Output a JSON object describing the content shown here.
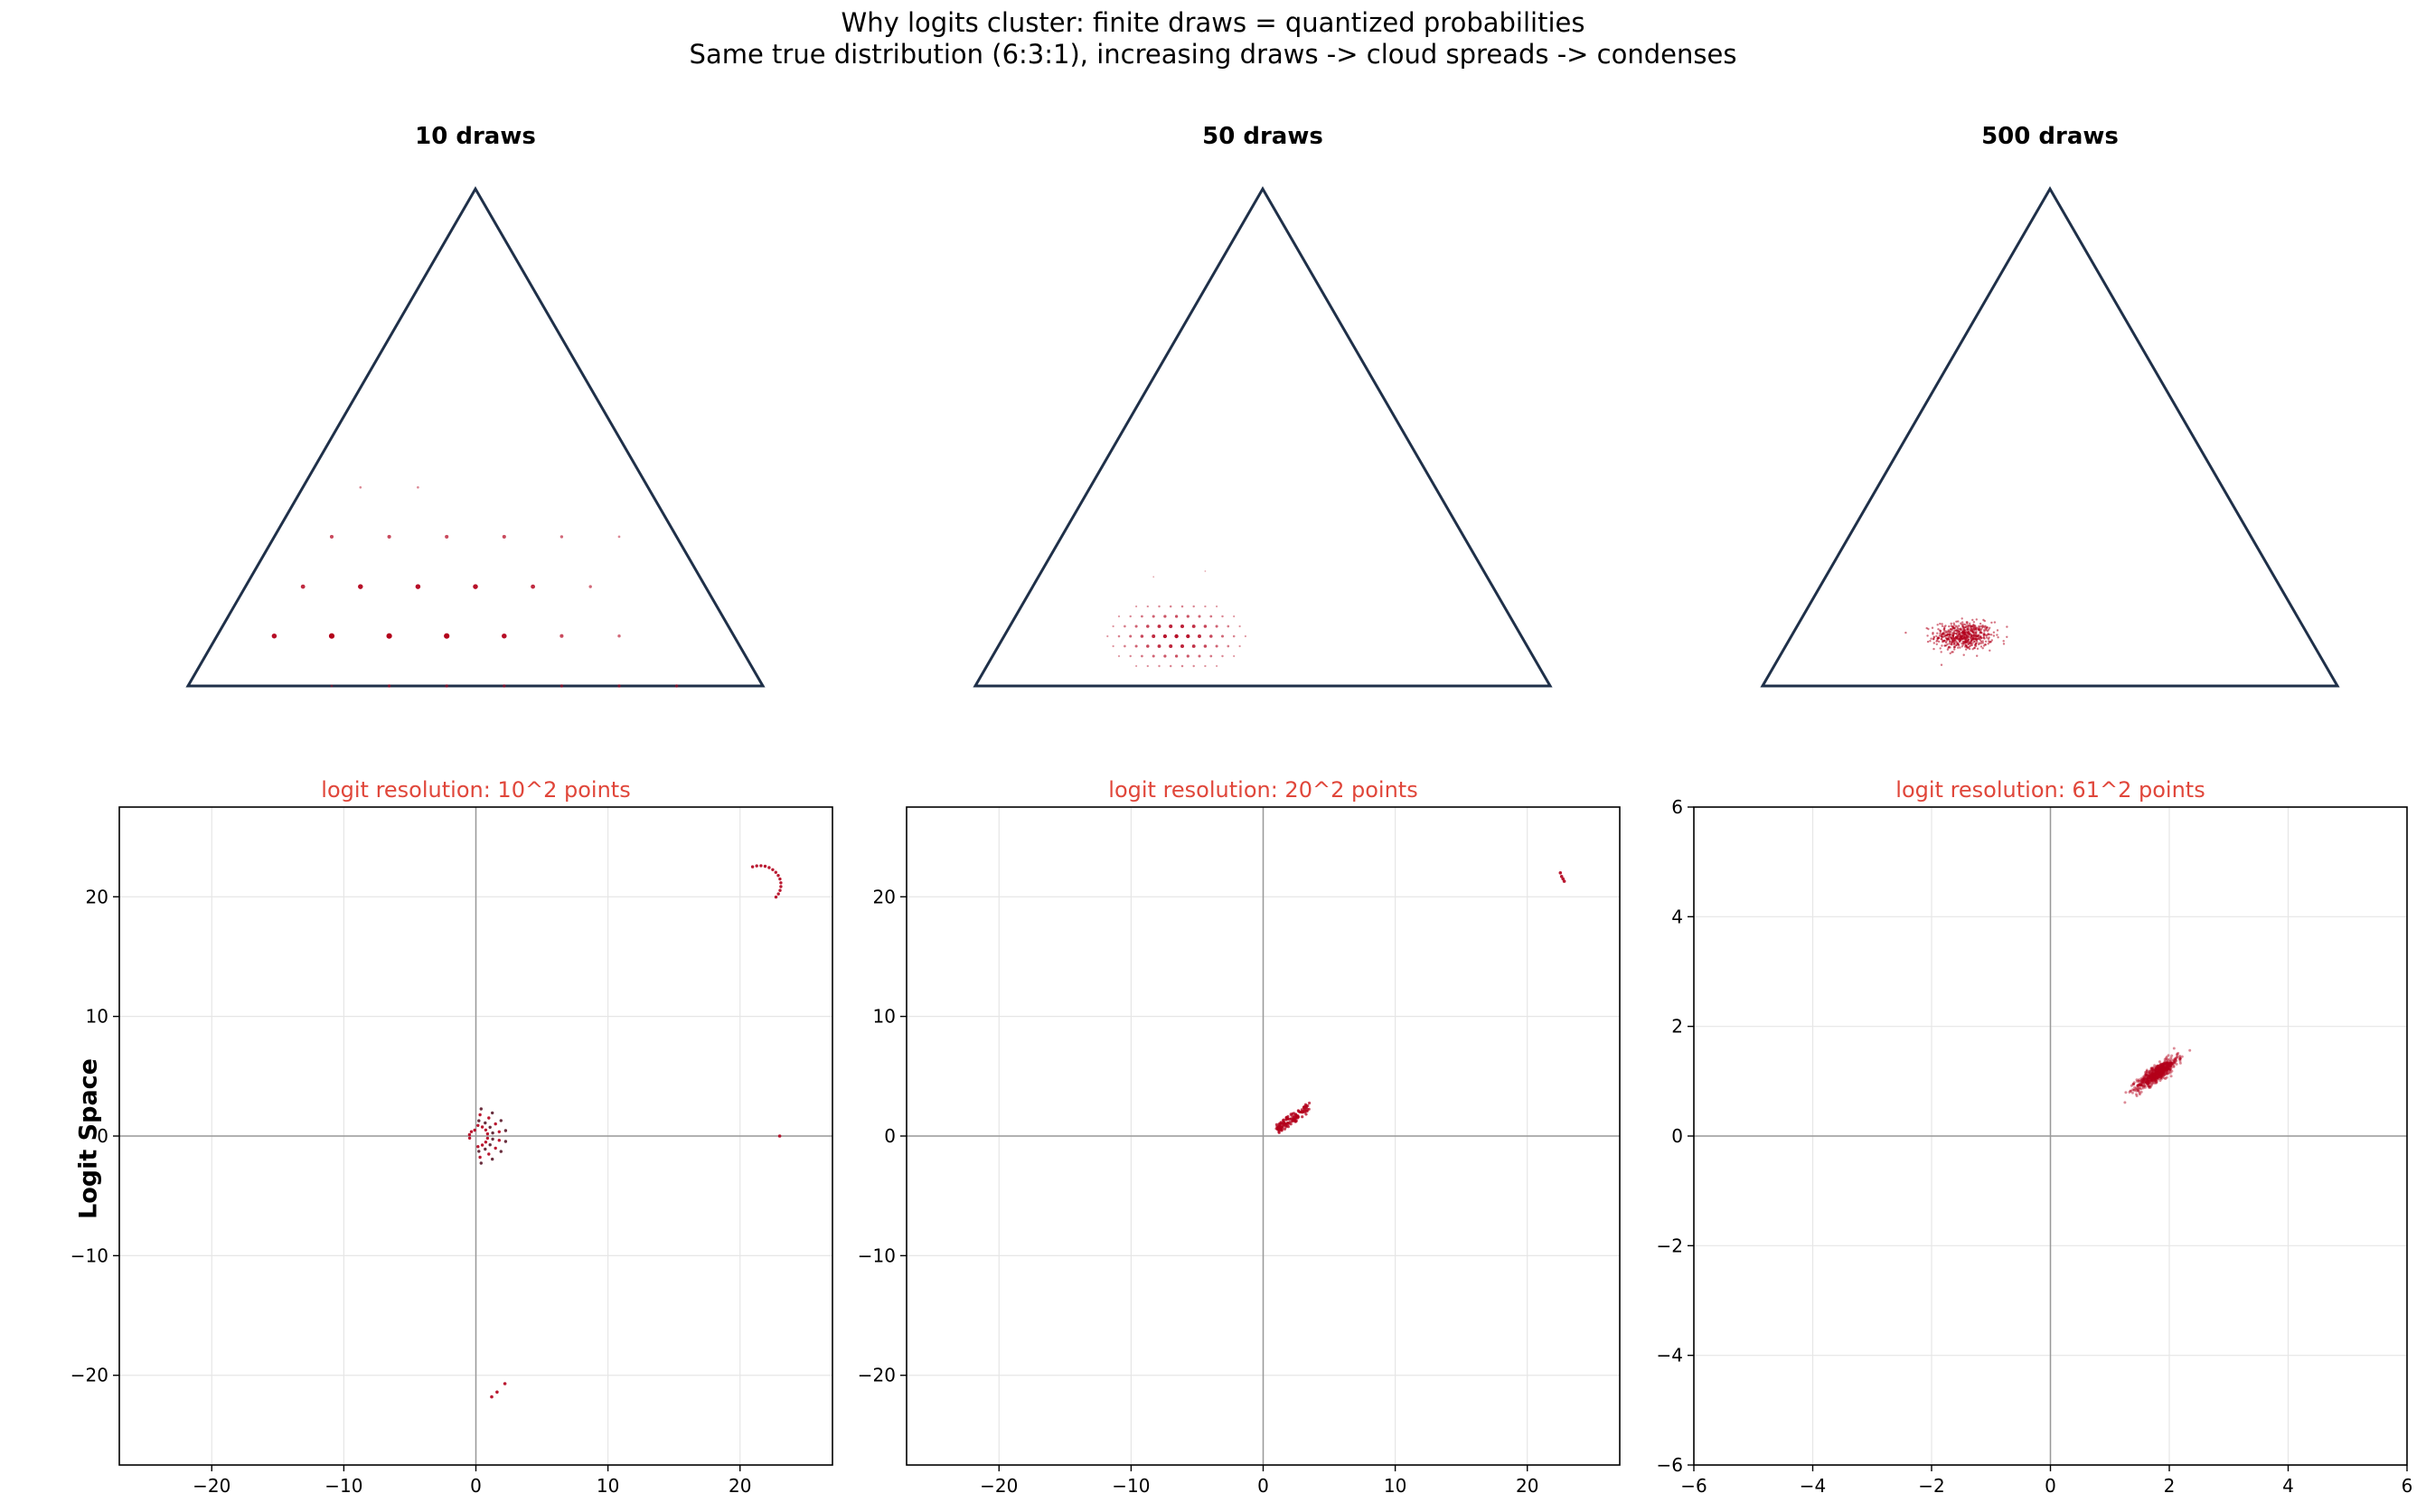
{
  "suptitle": {
    "line1": "Why logits cluster: finite draws = quantized probabilities",
    "line2": "Same true distribution (6:3:1), increasing draws -> cloud spreads -> condenses"
  },
  "row_label": "Logit Space",
  "colors": {
    "triangle": "#1f3049",
    "points": "#b3001b",
    "points_alt": "#5a1a2a",
    "subtitle": "#e0463a",
    "grid": "#e6e6e6",
    "axis_zero": "#999999"
  },
  "chart_data": [
    {
      "type": "scatter",
      "panel": "simplex",
      "title": "10 draws",
      "draws": 10,
      "true_distribution": [
        6,
        3,
        1
      ],
      "points": [
        {
          "x": 0.85,
          "y": 0.0,
          "n": 2
        },
        {
          "x": 0.75,
          "y": 0.0,
          "n": 2
        },
        {
          "x": 0.65,
          "y": 0.0,
          "n": 2
        },
        {
          "x": 0.55,
          "y": 0.0,
          "n": 2
        },
        {
          "x": 0.45,
          "y": 0.0,
          "n": 2
        },
        {
          "x": 0.35,
          "y": 0.0,
          "n": 2
        },
        {
          "x": 0.25,
          "y": 0.0,
          "n": 1
        },
        {
          "x": 0.15,
          "y": 0.087,
          "n": 5
        },
        {
          "x": 0.25,
          "y": 0.087,
          "n": 6
        },
        {
          "x": 0.35,
          "y": 0.087,
          "n": 6
        },
        {
          "x": 0.45,
          "y": 0.087,
          "n": 6
        },
        {
          "x": 0.55,
          "y": 0.087,
          "n": 5
        },
        {
          "x": 0.65,
          "y": 0.087,
          "n": 3
        },
        {
          "x": 0.75,
          "y": 0.087,
          "n": 2
        },
        {
          "x": 0.2,
          "y": 0.173,
          "n": 4
        },
        {
          "x": 0.3,
          "y": 0.173,
          "n": 5
        },
        {
          "x": 0.4,
          "y": 0.173,
          "n": 5
        },
        {
          "x": 0.5,
          "y": 0.173,
          "n": 5
        },
        {
          "x": 0.6,
          "y": 0.173,
          "n": 4
        },
        {
          "x": 0.7,
          "y": 0.173,
          "n": 2
        },
        {
          "x": 0.25,
          "y": 0.26,
          "n": 3
        },
        {
          "x": 0.35,
          "y": 0.26,
          "n": 3
        },
        {
          "x": 0.45,
          "y": 0.26,
          "n": 3
        },
        {
          "x": 0.55,
          "y": 0.26,
          "n": 3
        },
        {
          "x": 0.65,
          "y": 0.26,
          "n": 2
        },
        {
          "x": 0.75,
          "y": 0.26,
          "n": 1
        },
        {
          "x": 0.3,
          "y": 0.346,
          "n": 1
        },
        {
          "x": 0.4,
          "y": 0.346,
          "n": 1
        }
      ]
    },
    {
      "type": "scatter",
      "panel": "simplex",
      "title": "50 draws",
      "draws": 50,
      "true_distribution": [
        6,
        3,
        1
      ],
      "lattice_step": 0.02,
      "cloud_center": [
        0.35,
        0.087
      ],
      "cloud_spread": [
        0.13,
        0.067
      ]
    },
    {
      "type": "scatter",
      "panel": "simplex",
      "title": "500 draws",
      "draws": 500,
      "true_distribution": [
        6,
        3,
        1
      ],
      "cloud_center": [
        0.35,
        0.087
      ],
      "cloud_spread": [
        0.05,
        0.024
      ]
    },
    {
      "type": "scatter",
      "panel": "logit",
      "title": "logit resolution: 10^2 points",
      "xlim": [
        -27,
        27
      ],
      "ylim": [
        -27.5,
        27.5
      ],
      "xticks": [
        -20,
        -10,
        0,
        10,
        20
      ],
      "yticks": [
        -20,
        -10,
        0,
        10,
        20
      ],
      "grid": true,
      "clusters": [
        {
          "kind": "arc",
          "cx": 0,
          "cy": 0,
          "r_values": [
            0.9,
            1.3,
            1.8,
            2.3
          ],
          "angle_range": [
            -80,
            80
          ],
          "count": 30
        },
        {
          "kind": "arc",
          "cx": 0,
          "cy": 0,
          "r_values": [
            0.5
          ],
          "angle_range": [
            100,
            200
          ],
          "count": 4
        },
        {
          "kind": "arc",
          "cx": 21.5,
          "cy": 21.0,
          "r_values": [
            1.6
          ],
          "angle_range": [
            -40,
            110
          ],
          "count": 14
        },
        {
          "kind": "list",
          "pts": [
            [
              23.0,
              0.0
            ],
            [
              1.2,
              -21.8
            ],
            [
              1.6,
              -21.4
            ],
            [
              2.2,
              -20.7
            ]
          ]
        }
      ]
    },
    {
      "type": "scatter",
      "panel": "logit",
      "title": "logit resolution: 20^2 points",
      "xlim": [
        -27,
        27
      ],
      "ylim": [
        -27.5,
        27.5
      ],
      "xticks": [
        -20,
        -10,
        0,
        10,
        20
      ],
      "yticks": [
        -20,
        -10,
        0,
        10,
        20
      ],
      "grid": true,
      "clusters": [
        {
          "kind": "streaks",
          "x_start": 1.0,
          "x_end": 3.5,
          "slope": 0.75,
          "intercept": -0.2,
          "count": 120
        },
        {
          "kind": "list",
          "pts": [
            [
              22.5,
              22.0
            ],
            [
              22.6,
              21.7
            ],
            [
              22.7,
              21.5
            ],
            [
              22.8,
              21.3
            ]
          ]
        }
      ]
    },
    {
      "type": "scatter",
      "panel": "logit",
      "title": "logit resolution: 61^2 points",
      "xlim": [
        -6,
        6
      ],
      "ylim": [
        -6,
        6
      ],
      "xticks": [
        -6,
        -4,
        -2,
        0,
        2,
        4,
        6
      ],
      "yticks": [
        -6,
        -4,
        -2,
        0,
        2,
        4,
        6
      ],
      "grid": true,
      "clusters": [
        {
          "kind": "gaussian",
          "cx": 1.8,
          "cy": 1.15,
          "sx": 0.17,
          "sy": 0.14,
          "corr": 0.85,
          "count": 700
        }
      ]
    }
  ]
}
